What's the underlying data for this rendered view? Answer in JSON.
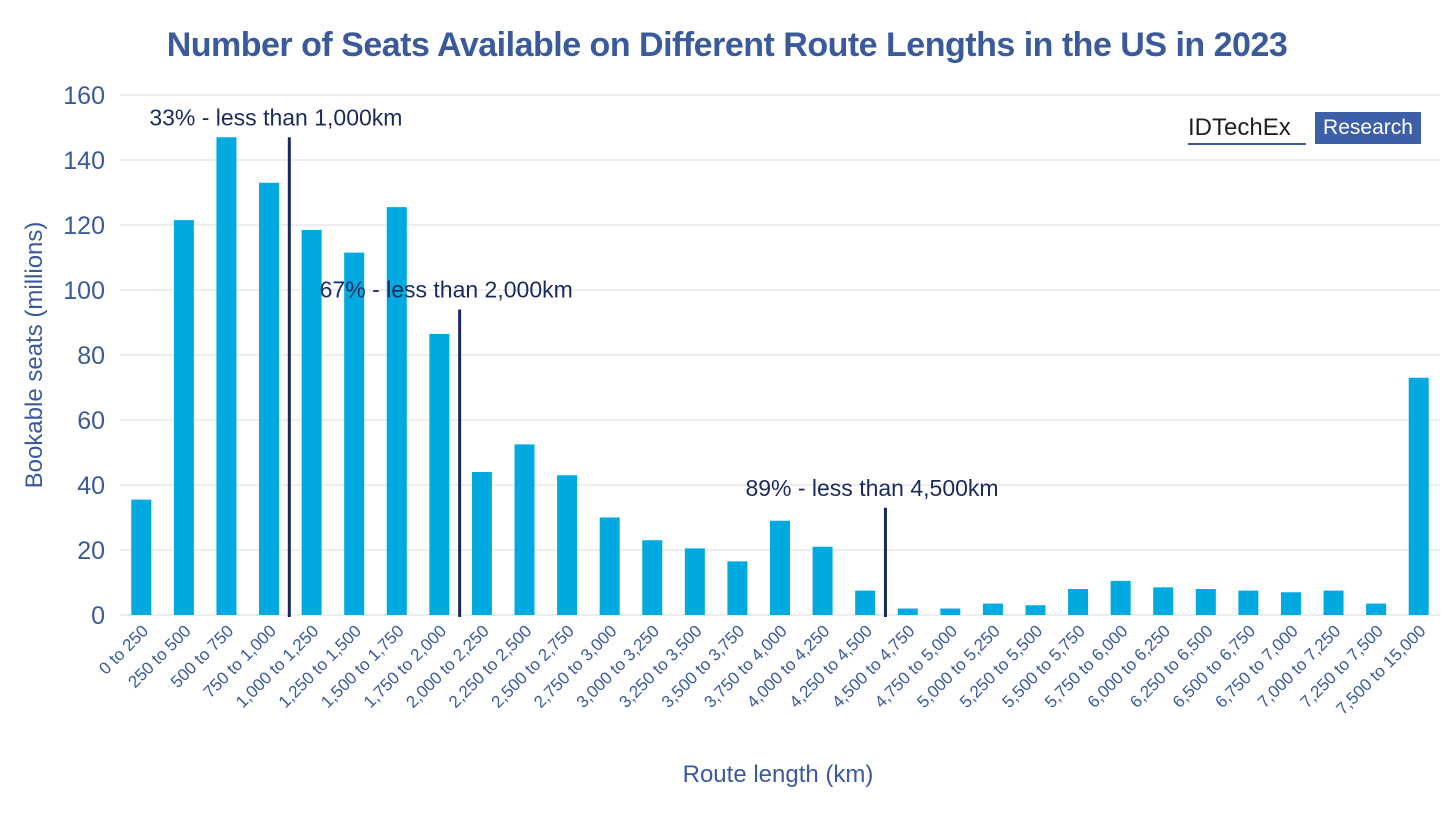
{
  "chart_data": {
    "type": "bar",
    "title": "Number of Seats Available on Different Route Lengths in the US in 2023",
    "xlabel": "Route length (km)",
    "ylabel": "Bookable seats (millions)",
    "ylim": [
      0,
      160
    ],
    "yticks": [
      0,
      20,
      40,
      60,
      80,
      100,
      120,
      140,
      160
    ],
    "grid": "horizontal",
    "bar_color": "#00a9e0",
    "annotation_color": "#1b2a5e",
    "categories": [
      "0 to 250",
      "250 to 500",
      "500 to 750",
      "750 to 1,000",
      "1,000 to 1,250",
      "1,250 to 1,500",
      "1,500 to 1,750",
      "1,750 to 2,000",
      "2,000 to 2,250",
      "2,250 to 2,500",
      "2,500 to 2,750",
      "2,750 to 3,000",
      "3,000 to 3,250",
      "3,250 to 3,500",
      "3,500 to 3,750",
      "3,750 to 4,000",
      "4,000 to 4,250",
      "4,250 to 4,500",
      "4,500 to 4,750",
      "4,750 to 5,000",
      "5,000 to 5,250",
      "5,250 to 5,500",
      "5,500 to 5,750",
      "5,750 to 6,000",
      "6,000 to 6,250",
      "6,250 to 6,500",
      "6,500 to 6,750",
      "6,750 to 7,000",
      "7,000 to 7,250",
      "7,250 to 7,500",
      "7,500 to 15,000"
    ],
    "values": [
      35.5,
      121.5,
      147,
      133,
      118.5,
      111.5,
      125.5,
      86.5,
      44,
      52.5,
      43,
      30,
      23,
      20.5,
      16.5,
      29,
      21,
      7.5,
      2,
      2,
      3.5,
      3,
      8,
      10.5,
      8.5,
      8,
      7.5,
      7,
      7.5,
      3.5,
      73
    ],
    "annotations": [
      {
        "text": "33% - less than 1,000km",
        "after_index": 3,
        "top_value": 147
      },
      {
        "text": "67% - less than 2,000km",
        "after_index": 7,
        "top_value": 94
      },
      {
        "text": "89% - less than 4,500km",
        "after_index": 17,
        "top_value": 33
      }
    ]
  },
  "logo": {
    "brand": "IDTechEx",
    "tag": "Research"
  }
}
